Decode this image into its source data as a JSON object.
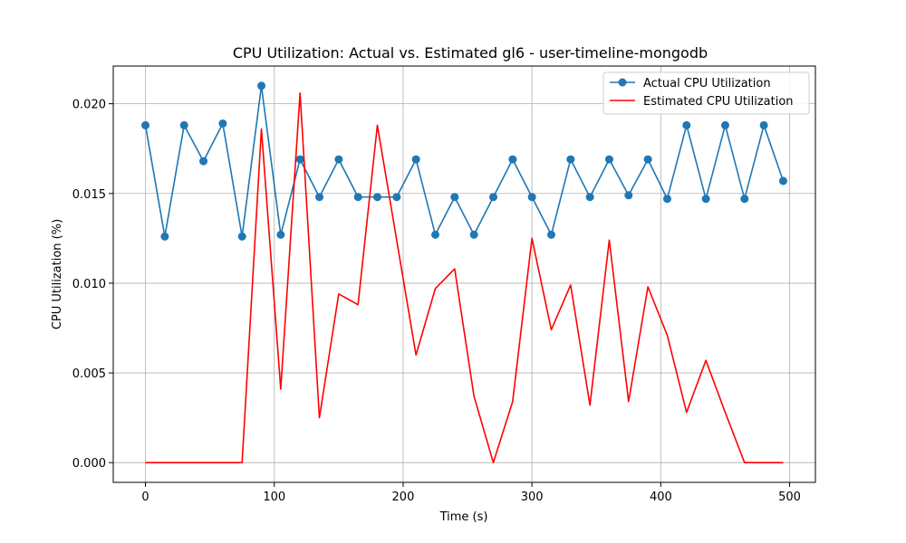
{
  "chart_data": {
    "type": "line",
    "title": "CPU Utilization: Actual vs. Estimated gl6 - user-timeline-mongodb",
    "xlabel": "Time (s)",
    "ylabel": "CPU Utilization (%)",
    "xlim": [
      -25,
      520
    ],
    "ylim": [
      -0.0011,
      0.0221
    ],
    "x_ticks": [
      0,
      100,
      200,
      300,
      400,
      500
    ],
    "y_ticks": [
      0.0,
      0.005,
      0.01,
      0.015,
      0.02
    ],
    "x_tick_labels": [
      "0",
      "100",
      "200",
      "300",
      "400",
      "500"
    ],
    "y_tick_labels": [
      "0.000",
      "0.005",
      "0.010",
      "0.015",
      "0.020"
    ],
    "grid": true,
    "legend_position": "top-right",
    "x": [
      0,
      15,
      30,
      45,
      60,
      75,
      90,
      105,
      120,
      135,
      150,
      165,
      180,
      195,
      210,
      225,
      240,
      255,
      270,
      285,
      300,
      315,
      330,
      345,
      360,
      375,
      390,
      405,
      420,
      435,
      450,
      465,
      480,
      495
    ],
    "series": [
      {
        "name": "Actual CPU Utilization",
        "color": "#1f77b4",
        "marker": "circle",
        "values": [
          0.0188,
          0.0126,
          0.0188,
          0.0168,
          0.0189,
          0.0126,
          0.021,
          0.0127,
          0.0169,
          0.0148,
          0.0169,
          0.0148,
          0.0148,
          0.0148,
          0.0169,
          0.0127,
          0.0148,
          0.0127,
          0.0148,
          0.0169,
          0.0148,
          0.0127,
          0.0169,
          0.0148,
          0.0169,
          0.0149,
          0.0169,
          0.0147,
          0.0188,
          0.0147,
          0.0188,
          0.0147,
          0.0188,
          0.0157
        ]
      },
      {
        "name": "Estimated CPU Utilization",
        "color": "#ff0000",
        "marker": "none",
        "values": [
          0.0,
          0.0,
          0.0,
          0.0,
          0.0,
          0.0,
          0.0186,
          0.0041,
          0.0206,
          0.0025,
          0.0094,
          0.0088,
          0.0188,
          0.0124,
          0.006,
          0.0097,
          0.0108,
          0.0037,
          0.0,
          0.0034,
          0.0125,
          0.0074,
          0.0099,
          0.0032,
          0.0124,
          0.0034,
          0.0098,
          0.0071,
          0.0028,
          0.0057,
          0.0028,
          0.0,
          0.0,
          0.0
        ]
      }
    ]
  }
}
